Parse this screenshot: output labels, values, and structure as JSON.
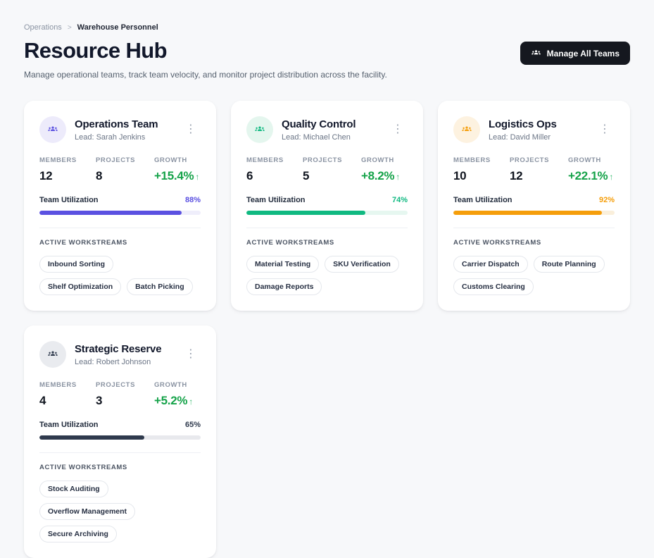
{
  "breadcrumb": {
    "parent": "Operations",
    "separator": ">",
    "current": "Warehouse Personnel"
  },
  "header": {
    "title": "Resource Hub",
    "subtitle": "Manage operational teams, track team velocity, and monitor project distribution across the facility.",
    "manage_button_label": "Manage All Teams",
    "manage_button_bg": "#15181f",
    "manage_button_text_color": "#ffffff"
  },
  "labels": {
    "members": "MEMBERS",
    "projects": "PROJECTS",
    "growth": "GROWTH",
    "utilization": "Team Utilization",
    "workstreams": "ACTIVE WORKSTREAMS"
  },
  "icons": {
    "kebab": "⋮",
    "growth_arrow": "↑",
    "avatar": "group-icon"
  },
  "colors": {
    "page_bg": "#f7f8fa",
    "card_bg": "#ffffff",
    "growth_green": "#16a34a"
  },
  "teams": [
    {
      "name": "Operations Team",
      "lead": "Lead: Sarah Jenkins",
      "members": "12",
      "projects": "8",
      "growth": "+15.4%",
      "utilization": "88%",
      "utilization_pct": 88,
      "accent": "#5b51e1",
      "accent_light": "#edebfb",
      "track": "#efeefb",
      "workstreams": [
        "Inbound Sorting",
        "Shelf Optimization",
        "Batch Picking"
      ]
    },
    {
      "name": "Quality Control",
      "lead": "Lead: Michael Chen",
      "members": "6",
      "projects": "5",
      "growth": "+8.2%",
      "utilization": "74%",
      "utilization_pct": 74,
      "accent": "#10b981",
      "accent_light": "#e4f6ee",
      "track": "#e6f7f0",
      "workstreams": [
        "Material Testing",
        "SKU Verification",
        "Damage Reports"
      ]
    },
    {
      "name": "Logistics Ops",
      "lead": "Lead: David Miller",
      "members": "10",
      "projects": "12",
      "growth": "+22.1%",
      "utilization": "92%",
      "utilization_pct": 92,
      "accent": "#f59e0b",
      "accent_light": "#fdf2e0",
      "track": "#faefdb",
      "workstreams": [
        "Carrier Dispatch",
        "Route Planning",
        "Customs Clearing"
      ]
    },
    {
      "name": "Strategic Reserve",
      "lead": "Lead: Robert Johnson",
      "members": "4",
      "projects": "3",
      "growth": "+5.2%",
      "utilization": "65%",
      "utilization_pct": 65,
      "accent": "#2f3a4d",
      "accent_light": "#e9ebef",
      "track": "#e8e9ed",
      "workstreams": [
        "Stock Auditing",
        "Overflow Management",
        "Secure Archiving"
      ]
    }
  ]
}
